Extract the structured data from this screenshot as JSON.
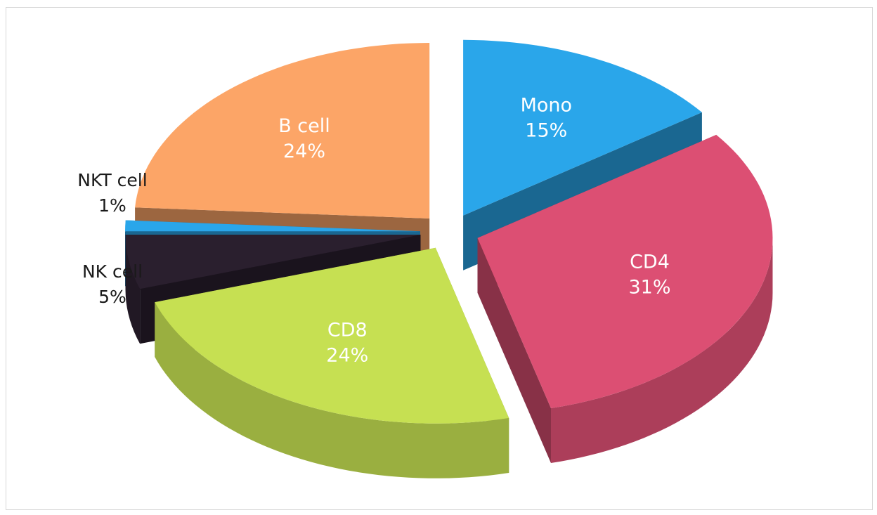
{
  "chart_data": {
    "type": "pie",
    "title": "",
    "slices": [
      {
        "label": "Mono",
        "value": 15,
        "display": "15%",
        "color": "#2aa6ea"
      },
      {
        "label": "CD4",
        "value": 31,
        "display": "31%",
        "color": "#dc4f73"
      },
      {
        "label": "CD8",
        "value": 24,
        "display": "24%",
        "color": "#c6e052"
      },
      {
        "label": "NK cell",
        "value": 5,
        "display": "5%",
        "color": "#2a1f2e"
      },
      {
        "label": "NKT cell",
        "value": 1,
        "display": "1%",
        "color": "#2aa6ea"
      },
      {
        "label": "B cell",
        "value": 24,
        "display": "24%",
        "color": "#fca567"
      }
    ],
    "exploded": true,
    "three_d": true,
    "legend": "none"
  }
}
